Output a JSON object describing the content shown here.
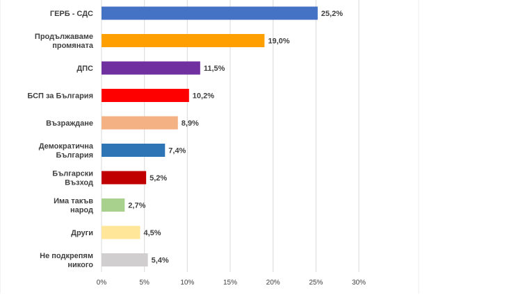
{
  "chart_data": {
    "type": "bar",
    "orientation": "horizontal",
    "title": "",
    "xlabel": "",
    "ylabel": "",
    "xlim": [
      0,
      30
    ],
    "grid": true,
    "legend": "none",
    "ticks": [
      0,
      5,
      10,
      15,
      20,
      25,
      30
    ],
    "tick_labels": [
      "0%",
      "5%",
      "10%",
      "15%",
      "20%",
      "25%",
      "30%"
    ],
    "categories": [
      [
        "ГЕРБ - СДС"
      ],
      [
        "Продължаваме",
        "промяната"
      ],
      [
        "ДПС"
      ],
      [
        "БСП за България"
      ],
      [
        "Възраждане"
      ],
      [
        "Демократична",
        "България"
      ],
      [
        "Български",
        "Възход"
      ],
      [
        "Има такъв",
        "народ"
      ],
      [
        "Други"
      ],
      [
        "Не подкрепям",
        "никого"
      ]
    ],
    "values": [
      25.2,
      19.0,
      11.5,
      10.2,
      8.9,
      7.4,
      5.2,
      2.7,
      4.5,
      5.4
    ],
    "value_labels": [
      "25,2%",
      "19,0%",
      "11,5%",
      "10,2%",
      "8,9%",
      "7,4%",
      "5,2%",
      "2,7%",
      "4,5%",
      "5,4%"
    ],
    "colors": [
      "#4472C4",
      "#FFA000",
      "#7030A0",
      "#FF0000",
      "#F4B183",
      "#2E75B6",
      "#C00000",
      "#A9D18E",
      "#FFE699",
      "#D0CECE"
    ]
  }
}
